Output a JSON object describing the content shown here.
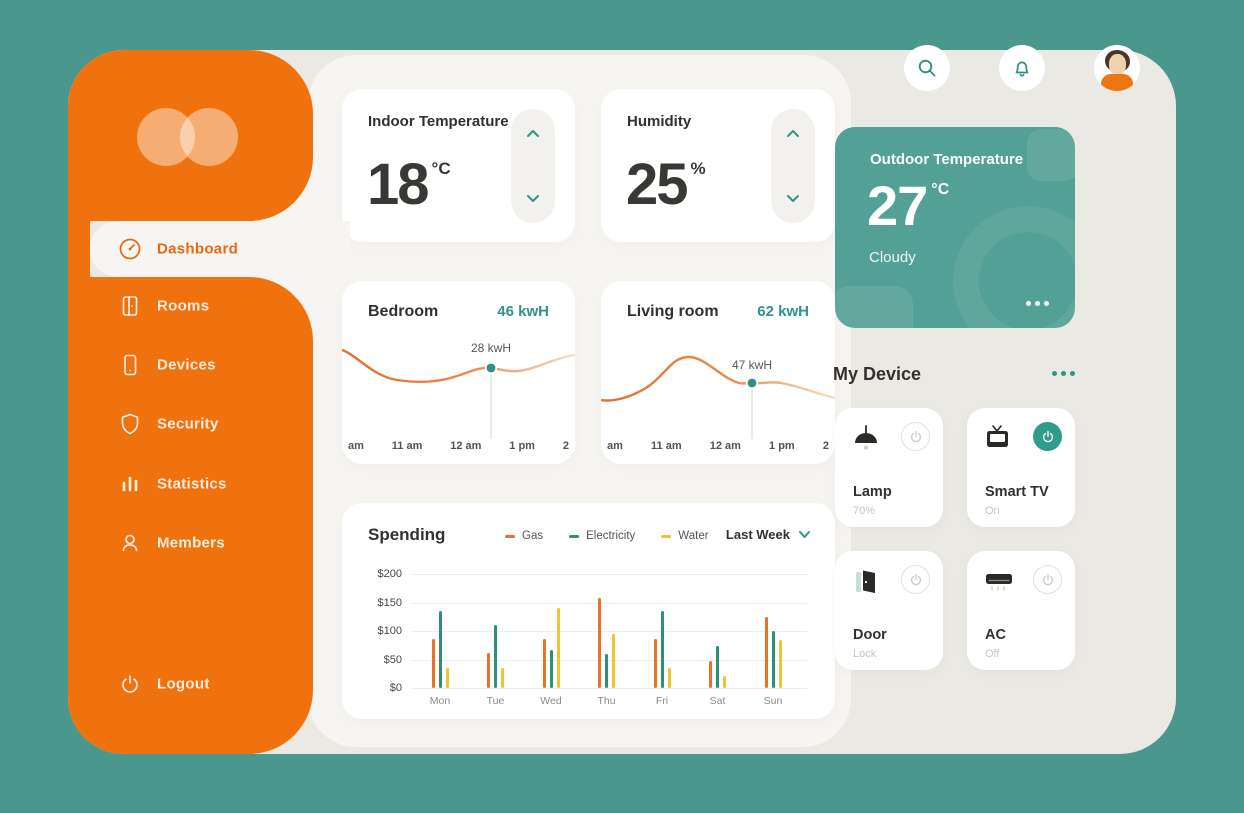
{
  "colors": {
    "page_bg": "#4A978D",
    "sidebar_orange": "#F0720E",
    "accent_teal": "#2E9488",
    "container_bg": "#EBE9E4",
    "panel_bg": "#F7F5F1"
  },
  "sidebar": {
    "logo": "two-overlapping-circles",
    "items": [
      {
        "label": "Dashboard",
        "icon": "gauge-icon",
        "active": true
      },
      {
        "label": "Rooms",
        "icon": "door-icon",
        "active": false
      },
      {
        "label": "Devices",
        "icon": "smartphone-icon",
        "active": false
      },
      {
        "label": "Security",
        "icon": "shield-icon",
        "active": false
      },
      {
        "label": "Statistics",
        "icon": "bar-chart-icon",
        "active": false
      },
      {
        "label": "Members",
        "icon": "user-icon",
        "active": false
      }
    ],
    "logout": {
      "label": "Logout",
      "icon": "power-icon"
    }
  },
  "topbar": {
    "icons": [
      "search-icon",
      "bell-icon",
      "avatar"
    ]
  },
  "climate": {
    "indoor": {
      "title": "Indoor Temperature",
      "value": "18",
      "unit": "°C"
    },
    "humidity": {
      "title": "Humidity",
      "value": "25",
      "unit": "%"
    }
  },
  "rooms": {
    "bedroom": {
      "title": "Bedroom",
      "total": "46 kwH",
      "marker_label": "28 kwH",
      "x_labels": [
        "am",
        "11 am",
        "12 am",
        "1 pm",
        "2"
      ]
    },
    "living": {
      "title": "Living room",
      "total": "62 kwH",
      "marker_label": "47 kwH",
      "x_labels": [
        "am",
        "11 am",
        "12 am",
        "1 pm",
        "2"
      ]
    }
  },
  "spending": {
    "title": "Spending",
    "range_label": "Last Week",
    "y_ticks": [
      "$200",
      "$150",
      "$100",
      "$50",
      "$0"
    ],
    "days": [
      "Mon",
      "Tue",
      "Wed",
      "Thu",
      "Fri",
      "Sat",
      "Sun"
    ],
    "series": [
      {
        "name": "Gas",
        "color": "#E8722A",
        "values": [
          86,
          61,
          86,
          158,
          86,
          48,
          125
        ]
      },
      {
        "name": "Electricity",
        "color": "#2E8F80",
        "values": [
          135,
          110,
          66,
          60,
          135,
          74,
          100
        ]
      },
      {
        "name": "Water",
        "color": "#F0C330",
        "values": [
          35,
          35,
          140,
          95,
          35,
          21,
          84
        ]
      }
    ]
  },
  "outdoor": {
    "title": "Outdoor Temperature",
    "value": "27",
    "unit": "°C",
    "condition": "Cloudy",
    "menu_dots": "•••"
  },
  "my_device": {
    "title": "My Device",
    "menu_dots": "•••",
    "devices": [
      {
        "name": "Lamp",
        "status": "70%",
        "icon": "lamp-icon",
        "power": "off"
      },
      {
        "name": "Smart TV",
        "status": "On",
        "icon": "tv-icon",
        "power": "on"
      },
      {
        "name": "Door",
        "status": "Lock",
        "icon": "door-icon",
        "power": "off"
      },
      {
        "name": "AC",
        "status": "Off",
        "icon": "ac-icon",
        "power": "off"
      }
    ]
  },
  "chart_data": [
    {
      "type": "line",
      "title": "Bedroom",
      "total_label": "46 kwH",
      "x_labels": [
        "am",
        "11 am",
        "12 am",
        "1 pm",
        "2"
      ],
      "highlight_point": {
        "x_between": "12 am and 1 pm",
        "value_label": "28 kwH"
      },
      "line_color": "#E0702F",
      "marker_color": "#2E9184"
    },
    {
      "type": "line",
      "title": "Living room",
      "total_label": "62 kwH",
      "x_labels": [
        "am",
        "11 am",
        "12 am",
        "1 pm",
        "2"
      ],
      "highlight_point": {
        "x_between": "12 am and 1 pm",
        "value_label": "47 kwH"
      },
      "line_color": "#E0702F",
      "marker_color": "#2E9184"
    },
    {
      "type": "bar",
      "title": "Spending",
      "categories": [
        "Mon",
        "Tue",
        "Wed",
        "Thu",
        "Fri",
        "Sat",
        "Sun"
      ],
      "series": [
        {
          "name": "Gas",
          "values": [
            86,
            61,
            86,
            158,
            86,
            48,
            125
          ]
        },
        {
          "name": "Electricity",
          "values": [
            135,
            110,
            66,
            60,
            135,
            74,
            100
          ]
        },
        {
          "name": "Water",
          "values": [
            35,
            35,
            140,
            95,
            35,
            21,
            84
          ]
        }
      ],
      "ylabel": "USD",
      "ylim": [
        0,
        200
      ],
      "y_ticks": [
        0,
        50,
        100,
        150,
        200
      ],
      "legend_position": "top",
      "grid": true,
      "range_selector": "Last Week"
    }
  ]
}
